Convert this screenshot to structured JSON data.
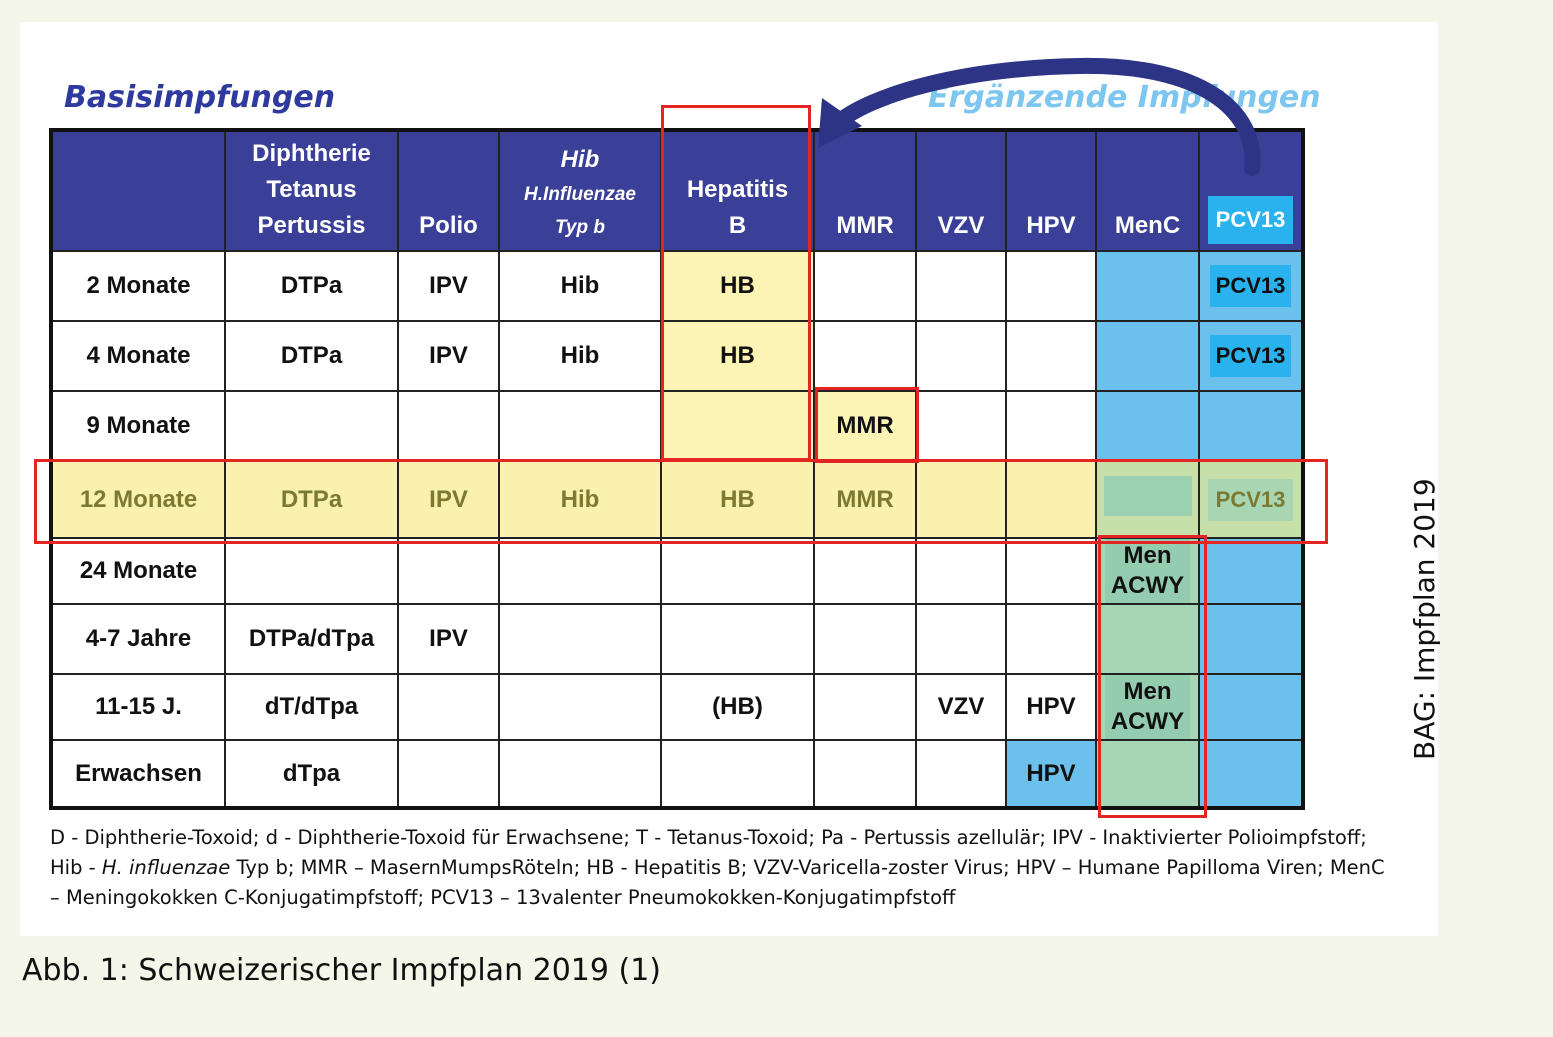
{
  "headings": {
    "basis": "Basisimpfungen",
    "erg": "Ergänzende Impfungen"
  },
  "columns": {
    "dtp": [
      "Diphtherie",
      "Tetanus",
      "Pertussis"
    ],
    "polio": "Polio",
    "hib": [
      "Hib",
      "H.Influenzae",
      "Typ b"
    ],
    "hep": [
      "Hepatitis",
      "B"
    ],
    "mmr": "MMR",
    "vzv": "VZV",
    "hpv": "HPV",
    "menc": "MenC",
    "pcv": "PCV13"
  },
  "rows": {
    "m2": {
      "age": "2 Monate",
      "dtp": "DTPa",
      "polio": "IPV",
      "hib": "Hib",
      "hep": "HB",
      "pcv": "PCV13"
    },
    "m4": {
      "age": "4 Monate",
      "dtp": "DTPa",
      "polio": "IPV",
      "hib": "Hib",
      "hep": "HB",
      "pcv": "PCV13"
    },
    "m9": {
      "age_num": "9",
      "age_rest": " Monate",
      "mmr": "MMR"
    },
    "m12": {
      "age": "12 Monate",
      "dtp": "DTPa",
      "polio": "IPV",
      "hib": "Hib",
      "hep": "HB",
      "mmr": "MMR",
      "pcv": "PCV13"
    },
    "m24": {
      "age": "24 Monate",
      "men": [
        "Men",
        "ACWY"
      ]
    },
    "y47": {
      "age": "4-7 Jahre",
      "dtp": "DTPa/dTpa",
      "polio": "IPV"
    },
    "y1115": {
      "age": "11-15 J.",
      "dtp": "dT/dTpa",
      "hep": "(HB)",
      "vzv": "VZV",
      "hpv": "HPV",
      "men": [
        "Men",
        "ACWY"
      ]
    },
    "adult": {
      "age": "Erwachsen",
      "dtp": "dTpa",
      "hpv": "HPV"
    }
  },
  "legend": {
    "l1": "D - Diphtherie-Toxoid; d - Diphtherie-Toxoid für Erwachsene; T - Tetanus-Toxoid; Pa - Pertussis azellulär; IPV -  Inaktivierter Polioimpfstoff;",
    "l2a": "Hib - ",
    "l2i": "H. influenzae",
    "l2b": " Typ b; MMR – MasernMumpsRöteln; HB - Hepatitis B; VZV-Varicella-zoster Virus; HPV – Humane Papilloma Viren; MenC",
    "l3": "– Meningokokken C-Konjugatimpfstoff; PCV13 – 13valenter Pneumokokken-Konjugatimpfstoff"
  },
  "side_label": "BAG: Impfplan 2019",
  "caption": "Abb. 1: Schweizerischer Impfplan 2019 (1)",
  "colors": {
    "header": "#3a3f97",
    "light_blue": "#6cc1ec",
    "highlight": "#faf1ae",
    "red": "#e32624"
  }
}
